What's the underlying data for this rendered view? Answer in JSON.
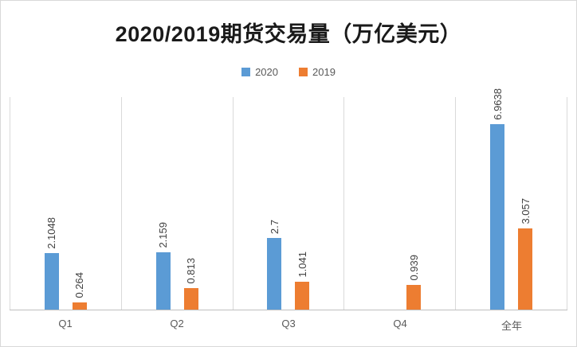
{
  "chart_data": {
    "type": "bar",
    "title": "2020/2019期货交易量（万亿美元）",
    "categories": [
      "Q1",
      "Q2",
      "Q3",
      "Q4",
      "全年"
    ],
    "series": [
      {
        "name": "2020",
        "color": "#5b9bd5",
        "values": [
          2.1048,
          2.159,
          2.7,
          null,
          6.9638
        ]
      },
      {
        "name": "2019",
        "color": "#ed7d31",
        "values": [
          0.264,
          0.813,
          1.041,
          0.939,
          3.057
        ]
      }
    ],
    "data_labels": {
      "2020": [
        "2.1048",
        "2.159",
        "2.7",
        "",
        "6.9638"
      ],
      "2019": [
        "0.264",
        "0.813",
        "1.041",
        "0.939",
        "3.057"
      ]
    },
    "ylim": [
      0,
      8
    ],
    "y_axis_visible": false,
    "gridlines": "vertical-category-separators",
    "legend_position": "top",
    "xlabel": "",
    "ylabel": ""
  },
  "colors": {
    "series_2020": "#5b9bd5",
    "series_2019": "#ed7d31",
    "gridline": "#d9d9d9",
    "axis": "#bfbfbf",
    "label_text": "#404040",
    "tick_text": "#595959"
  }
}
